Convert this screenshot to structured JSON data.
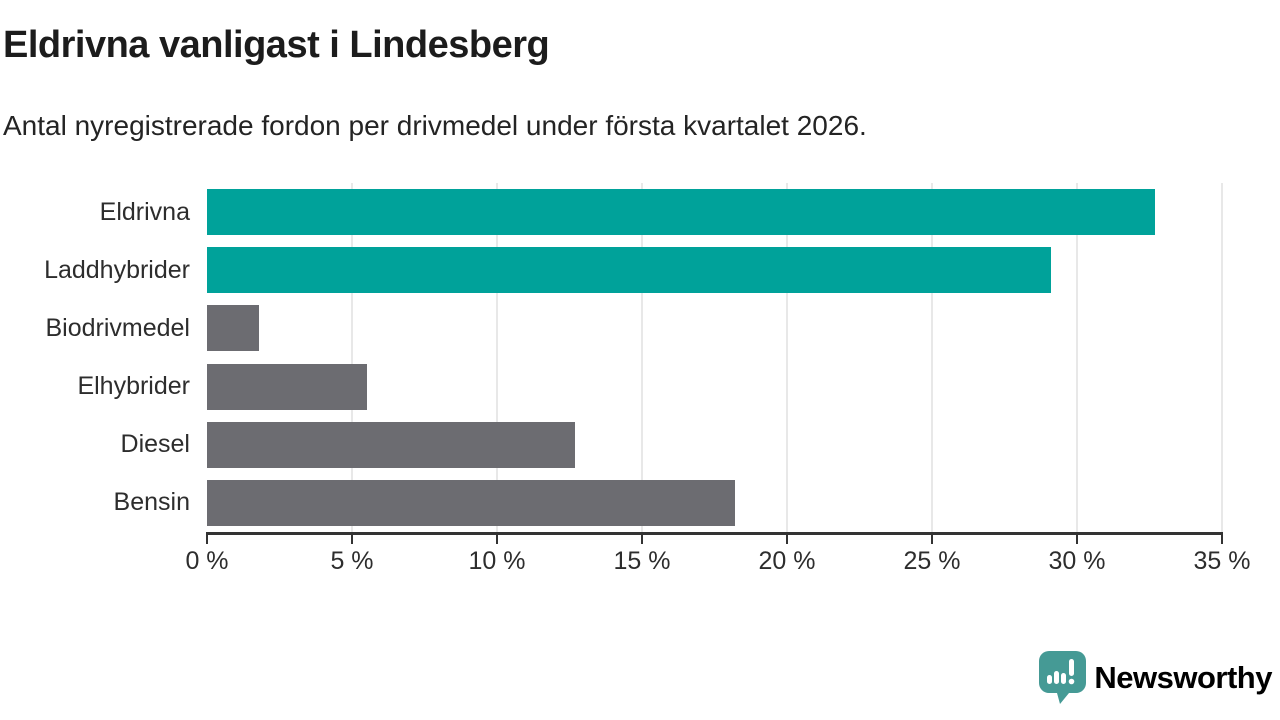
{
  "header": {
    "title": "Eldrivna vanligast i Lindesberg",
    "subtitle": "Antal nyregistrerade fordon per drivmedel under första kvartalet 2026."
  },
  "chart_data": {
    "type": "bar",
    "orientation": "horizontal",
    "categories": [
      "Eldrivna",
      "Laddhybrider",
      "Biodrivmedel",
      "Elhybrider",
      "Diesel",
      "Bensin"
    ],
    "values": [
      32.7,
      29.1,
      1.8,
      5.5,
      12.7,
      18.2
    ],
    "unit": "%",
    "bar_colors": [
      "#00a29a",
      "#00a29a",
      "#6c6c71",
      "#6c6c71",
      "#6c6c71",
      "#6c6c71"
    ],
    "highlight_color": "#00a29a",
    "default_color": "#6c6c71",
    "xlim": [
      0,
      35
    ],
    "x_ticks": [
      0,
      5,
      10,
      15,
      20,
      25,
      30,
      35
    ],
    "x_tick_labels": [
      "0 %",
      "5 %",
      "10 %",
      "15 %",
      "20 %",
      "25 %",
      "30 %",
      "35 %"
    ],
    "grid": "vertical",
    "legend": "none",
    "title": "Eldrivna vanligast i Lindesberg",
    "xlabel": "",
    "ylabel": ""
  },
  "footer": {
    "brand": "Newsworthy",
    "brand_color": "#459a95",
    "logo_icon": "speech-bubble-bar-chart-exclamation"
  },
  "colors": {
    "axis": "#333333",
    "gridline": "#e8e8e8",
    "text": "#2d2d2d",
    "background": "#ffffff"
  }
}
